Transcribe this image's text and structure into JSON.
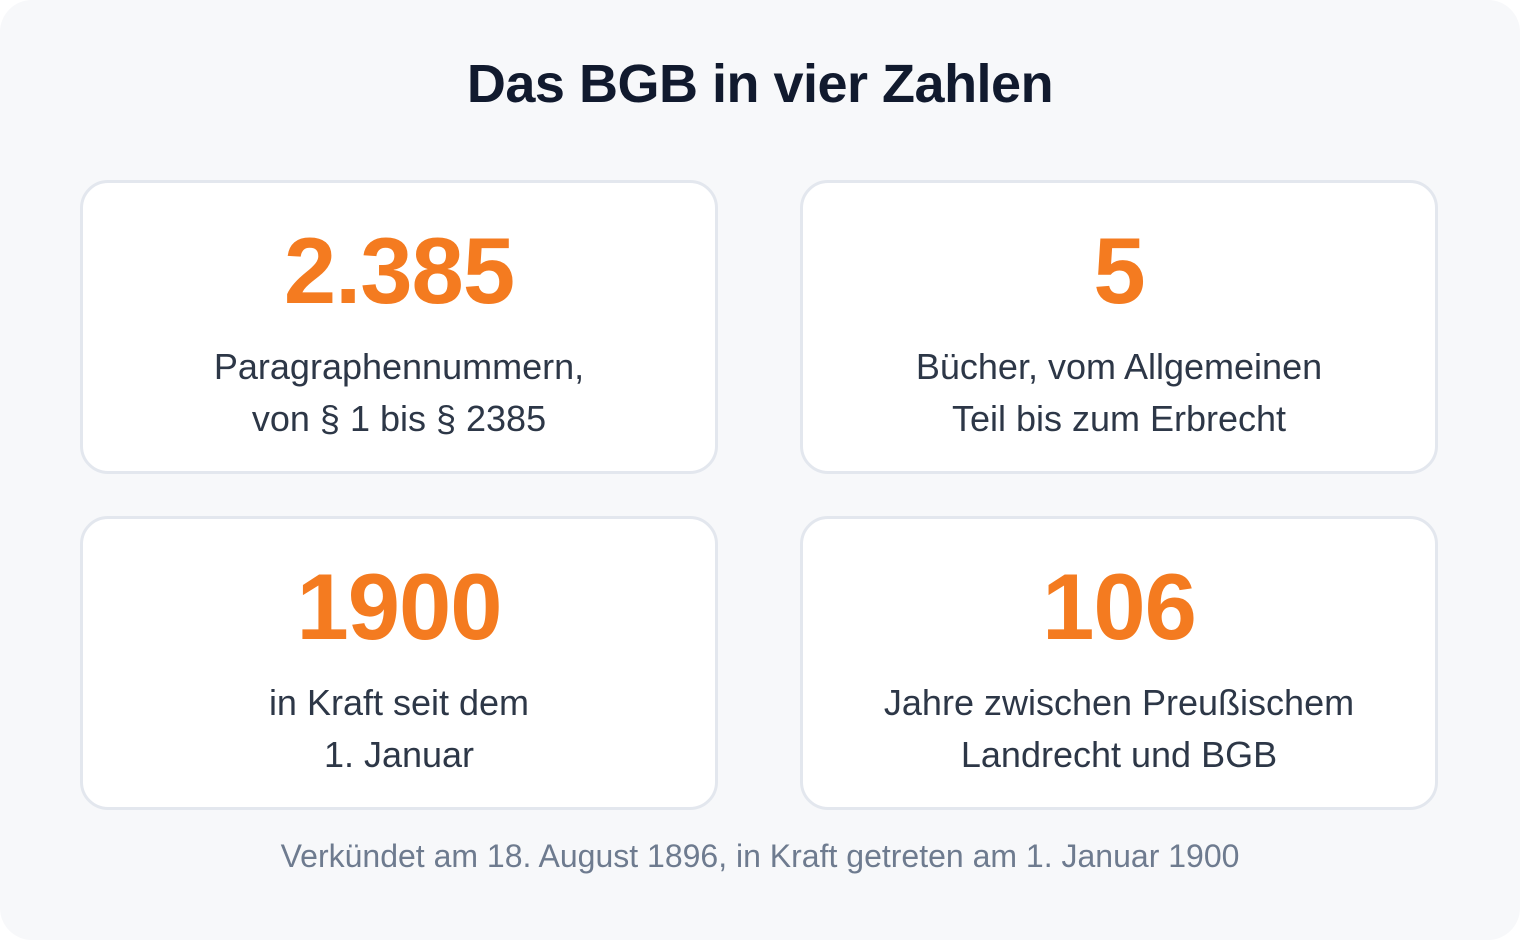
{
  "title": "Das BGB in vier Zahlen",
  "stats": [
    {
      "value": "2.385",
      "label_lines": [
        "Paragraphennummern,",
        "von § 1 bis § 2385"
      ]
    },
    {
      "value": "5",
      "label_lines": [
        "Bücher, vom Allgemeinen",
        "Teil bis zum Erbrecht"
      ]
    },
    {
      "value": "1900",
      "label_lines": [
        "in Kraft seit dem",
        "1. Januar"
      ]
    },
    {
      "value": "106",
      "label_lines": [
        "Jahre zwischen Preußischem",
        "Landrecht und BGB"
      ]
    }
  ],
  "footer": "Verkündet am 18. August 1896, in Kraft getreten am 1. Januar 1900",
  "colors": {
    "accent": "#f47b20",
    "title": "#111a2e",
    "label": "#2d3747",
    "footer": "#6e7b8f",
    "card_border": "#e3e7ee",
    "background": "#f7f8fa"
  }
}
